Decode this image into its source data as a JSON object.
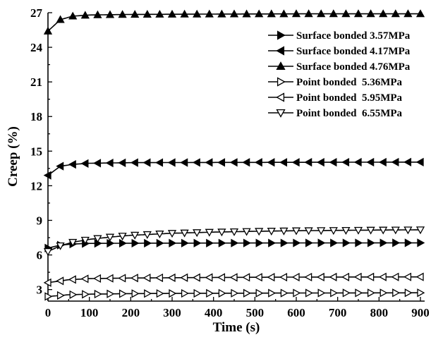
{
  "chart_data": {
    "type": "line",
    "title": "",
    "xlabel": "Time (s)",
    "ylabel": "Creep (%)",
    "xlim": [
      0,
      900
    ],
    "ylim": [
      2,
      27
    ],
    "x_ticks": [
      0,
      100,
      200,
      300,
      400,
      500,
      600,
      700,
      800,
      900
    ],
    "y_ticks": [
      3,
      6,
      9,
      12,
      15,
      18,
      21,
      24,
      27
    ],
    "grid": false,
    "legend_position": "top-right",
    "series": [
      {
        "name": "Surface bonded 3.57MPa",
        "marker": "triangle-right-filled",
        "points": [
          [
            0,
            6.6
          ],
          [
            30,
            6.85
          ],
          [
            60,
            6.95
          ],
          [
            100,
            7.0
          ],
          [
            200,
            7.02
          ],
          [
            400,
            7.03
          ],
          [
            600,
            7.04
          ],
          [
            900,
            7.05
          ]
        ]
      },
      {
        "name": "Surface bonded 4.17MPa",
        "marker": "triangle-left-filled",
        "points": [
          [
            0,
            12.9
          ],
          [
            30,
            13.7
          ],
          [
            60,
            13.85
          ],
          [
            100,
            13.95
          ],
          [
            200,
            14.0
          ],
          [
            400,
            14.02
          ],
          [
            600,
            14.03
          ],
          [
            900,
            14.05
          ]
        ]
      },
      {
        "name": "Surface bonded 4.76MPa",
        "marker": "triangle-up-filled",
        "points": [
          [
            0,
            25.4
          ],
          [
            30,
            26.4
          ],
          [
            60,
            26.7
          ],
          [
            100,
            26.8
          ],
          [
            200,
            26.85
          ],
          [
            400,
            26.88
          ],
          [
            600,
            26.9
          ],
          [
            900,
            26.9
          ]
        ]
      },
      {
        "name": "Point bonded  5.36MPa",
        "marker": "triangle-right-open",
        "points": [
          [
            0,
            2.4
          ],
          [
            50,
            2.55
          ],
          [
            100,
            2.6
          ],
          [
            200,
            2.65
          ],
          [
            400,
            2.68
          ],
          [
            600,
            2.7
          ],
          [
            900,
            2.72
          ]
        ]
      },
      {
        "name": "Point bonded  5.95MPa",
        "marker": "triangle-left-open",
        "points": [
          [
            0,
            3.6
          ],
          [
            50,
            3.85
          ],
          [
            100,
            3.95
          ],
          [
            200,
            4.0
          ],
          [
            400,
            4.05
          ],
          [
            600,
            4.08
          ],
          [
            900,
            4.1
          ]
        ]
      },
      {
        "name": "Point bonded  6.55MPa",
        "marker": "triangle-down-open",
        "points": [
          [
            0,
            6.3
          ],
          [
            30,
            6.8
          ],
          [
            60,
            7.1
          ],
          [
            100,
            7.35
          ],
          [
            150,
            7.55
          ],
          [
            200,
            7.7
          ],
          [
            300,
            7.88
          ],
          [
            400,
            7.98
          ],
          [
            500,
            8.05
          ],
          [
            600,
            8.1
          ],
          [
            700,
            8.13
          ],
          [
            800,
            8.16
          ],
          [
            900,
            8.18
          ]
        ]
      }
    ]
  }
}
